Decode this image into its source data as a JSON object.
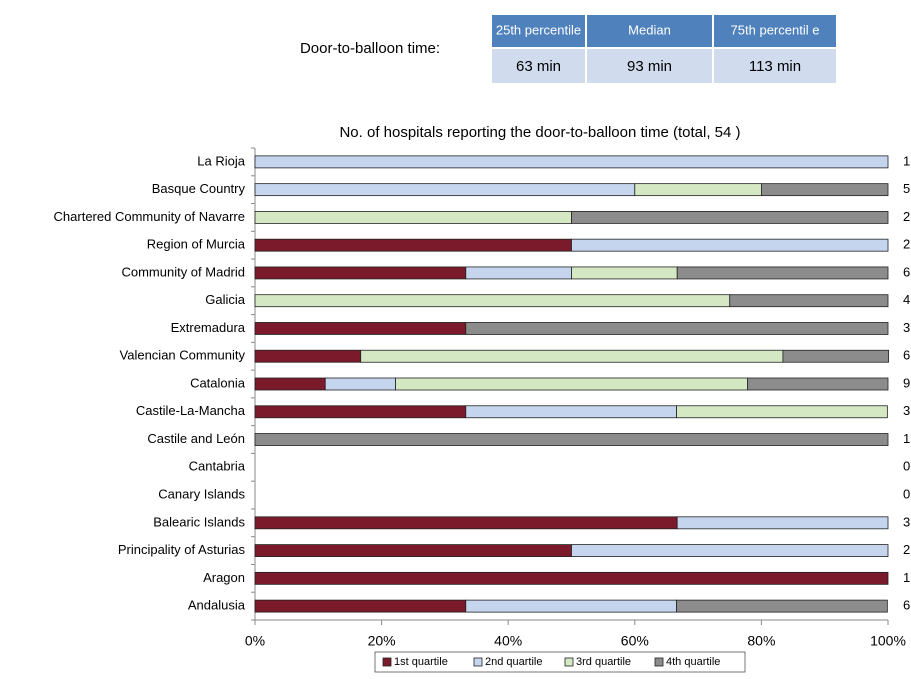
{
  "table": {
    "label": "Door-to-balloon time:",
    "header": [
      "25th percentile",
      "Median",
      "75th percentil e"
    ],
    "values": [
      "63 min",
      "93 min",
      "113 min"
    ]
  },
  "chart_data": {
    "type": "stacked_barh",
    "title": "No. of hospitals reporting the door-to-balloon time (total, 54 )",
    "categories": [
      "La Rioja",
      "Basque Country",
      "Chartered Community of Navarre",
      "Region of Murcia",
      "Community of Madrid",
      "Galicia",
      "Extremadura",
      "Valencian Community",
      "Catalonia",
      "Castile-La-Mancha",
      "Castile and León",
      "Cantabria",
      "Canary Islands",
      "Balearic Islands",
      "Principality of Asturias",
      "Aragon",
      "Andalusia"
    ],
    "series": [
      {
        "name": "1st quartile",
        "color": "#7b1a2a",
        "values": [
          0,
          0,
          0,
          50,
          33.3,
          0,
          33.3,
          16.7,
          11.1,
          33.3,
          0,
          0,
          0,
          66.7,
          50,
          100,
          33.3
        ]
      },
      {
        "name": "2nd quartile",
        "color": "#c5d5ee",
        "values": [
          100,
          60,
          0,
          50,
          16.7,
          0,
          0,
          0,
          11.1,
          33.3,
          0,
          0,
          0,
          33.3,
          50,
          0,
          33.3
        ]
      },
      {
        "name": "3rd quartile",
        "color": "#d5e8c4",
        "values": [
          0,
          20,
          50,
          0,
          16.7,
          75,
          0,
          66.7,
          55.6,
          33.3,
          0,
          0,
          0,
          0,
          0,
          0,
          0
        ]
      },
      {
        "name": "4th quartile",
        "color": "#8c8c8c",
        "values": [
          0,
          20,
          50,
          0,
          33.3,
          25,
          66.7,
          16.7,
          22.2,
          0,
          100,
          0,
          0,
          0,
          0,
          0,
          33.3
        ]
      }
    ],
    "counts": [
      1,
      5,
      2,
      2,
      6,
      4,
      3,
      6,
      9,
      3,
      1,
      0,
      0,
      3,
      2,
      1,
      6
    ],
    "xlim": [
      0,
      100
    ],
    "xticks": [
      {
        "value": 0,
        "label": "0%"
      },
      {
        "value": 20,
        "label": "20%"
      },
      {
        "value": 40,
        "label": "40%"
      },
      {
        "value": 60,
        "label": "60%"
      },
      {
        "value": 80,
        "label": "80%"
      },
      {
        "value": 100,
        "label": "100%"
      }
    ],
    "legend": "bottom"
  }
}
